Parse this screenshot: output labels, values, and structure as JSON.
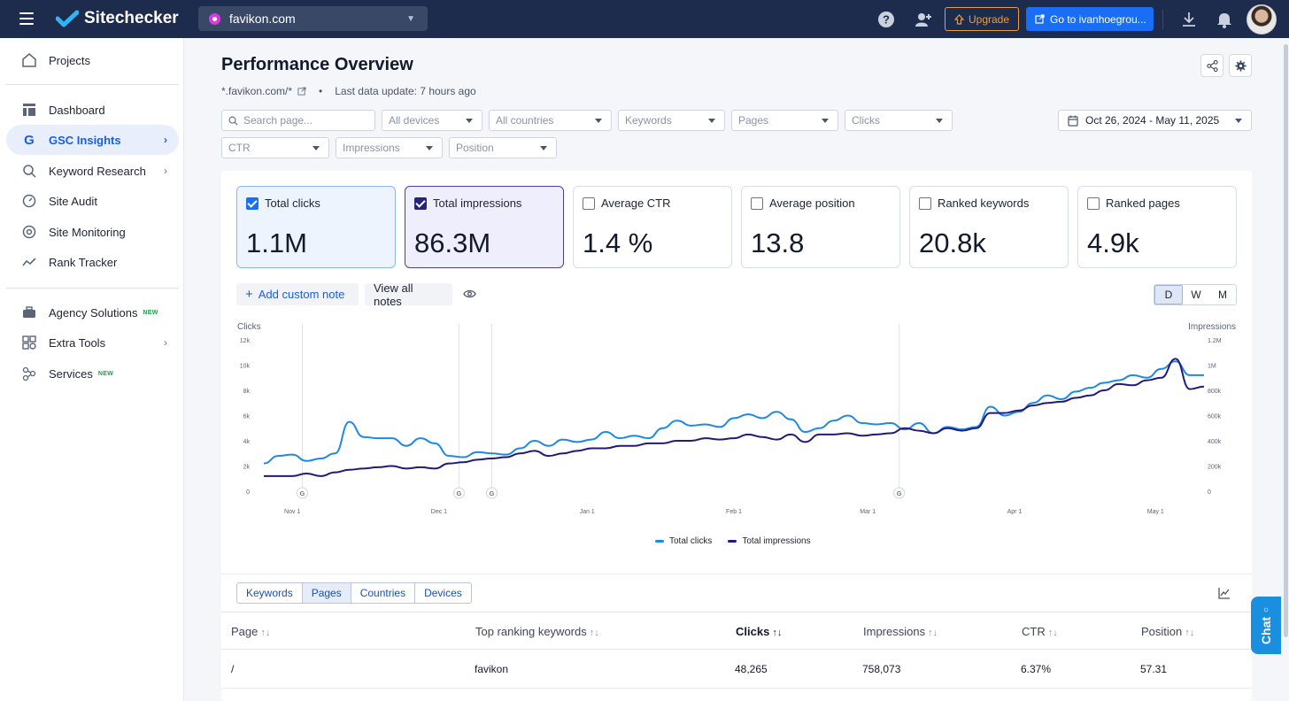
{
  "app": {
    "brand": "Sitechecker",
    "site": "favikon.com",
    "upgrade_label": "Upgrade",
    "goto_label": "Go to ivanhoegrou..."
  },
  "sidebar": {
    "items": [
      {
        "label": "Projects",
        "icon": "home-icon"
      },
      {
        "label": "Dashboard",
        "icon": "dashboard-icon"
      },
      {
        "label": "GSC Insights",
        "icon": "google-icon"
      },
      {
        "label": "Keyword Research",
        "icon": "keyword-search-icon"
      },
      {
        "label": "Site Audit",
        "icon": "gauge-icon"
      },
      {
        "label": "Site Monitoring",
        "icon": "monitor-icon"
      },
      {
        "label": "Rank Tracker",
        "icon": "trend-icon"
      },
      {
        "label": "Agency Solutions",
        "icon": "briefcase-icon"
      },
      {
        "label": "Extra Tools",
        "icon": "tools-icon"
      },
      {
        "label": "Services",
        "icon": "services-icon"
      }
    ],
    "new_badge": "NEW"
  },
  "header": {
    "title": "Performance Overview",
    "url": "*.favikon.com/*",
    "last_update": "Last data update: 7 hours ago"
  },
  "filters": {
    "search_placeholder": "Search page...",
    "devices": "All devices",
    "countries": "All countries",
    "keywords": "Keywords",
    "pages": "Pages",
    "clicks": "Clicks",
    "ctr": "CTR",
    "impressions": "Impressions",
    "position": "Position",
    "date_range": "Oct 26, 2024 - May 11, 2025"
  },
  "metrics": [
    {
      "label": "Total clicks",
      "value": "1.1M",
      "checked": true
    },
    {
      "label": "Total impressions",
      "value": "86.3M",
      "checked": true
    },
    {
      "label": "Average CTR",
      "value": "1.4 %",
      "checked": false
    },
    {
      "label": "Average position",
      "value": "13.8",
      "checked": false
    },
    {
      "label": "Ranked keywords",
      "value": "20.8k",
      "checked": false
    },
    {
      "label": "Ranked pages",
      "value": "4.9k",
      "checked": false
    }
  ],
  "notes": {
    "add": "Add custom note",
    "view": "View all notes"
  },
  "granularity": [
    "D",
    "W",
    "M"
  ],
  "legend": {
    "clicks": "Total clicks",
    "impressions": "Total impressions"
  },
  "tabs": [
    "Keywords",
    "Pages",
    "Countries",
    "Devices"
  ],
  "table": {
    "headers": [
      "Page",
      "Top ranking keywords",
      "Clicks",
      "Impressions",
      "CTR",
      "Position"
    ],
    "rows": [
      [
        "/",
        "favikon",
        "48,265",
        "758,073",
        "6.37%",
        "57.31"
      ]
    ]
  },
  "chat_label": "Chat",
  "colors": {
    "clicks": "#1e88e5",
    "impressions": "#221a7a",
    "accent": "#1a6ef5"
  },
  "chart_data": {
    "type": "line",
    "ylabel": "Clicks",
    "y2label": "Impressions",
    "ylim": [
      0,
      12000
    ],
    "y2lim": [
      0,
      1200000
    ],
    "yticks": [
      "0",
      "2k",
      "4k",
      "6k",
      "8k",
      "10k",
      "12k"
    ],
    "y2ticks": [
      "0",
      "200k",
      "400k",
      "600k",
      "800k",
      "1M",
      "1.2M"
    ],
    "xticks": [
      "Nov 1",
      "Dec 1",
      "Jan 1",
      "Feb 1",
      "Mar 1",
      "Apr 1",
      "May 1"
    ],
    "x": [
      "Oct 26",
      "Oct 28",
      "Oct 31",
      "Nov 3",
      "Nov 6",
      "Nov 9",
      "Nov 12",
      "Nov 15",
      "Nov 18",
      "Nov 21",
      "Nov 24",
      "Nov 27",
      "Nov 30",
      "Dec 3",
      "Dec 6",
      "Dec 9",
      "Dec 12",
      "Dec 15",
      "Dec 18",
      "Dec 21",
      "Dec 24",
      "Dec 27",
      "Dec 30",
      "Jan 2",
      "Jan 5",
      "Jan 8",
      "Jan 11",
      "Jan 14",
      "Jan 17",
      "Jan 20",
      "Jan 23",
      "Jan 26",
      "Jan 29",
      "Feb 1",
      "Feb 4",
      "Feb 7",
      "Feb 10",
      "Feb 13",
      "Feb 16",
      "Feb 19",
      "Feb 22",
      "Feb 25",
      "Feb 28",
      "Mar 3",
      "Mar 6",
      "Mar 9",
      "Mar 12",
      "Mar 15",
      "Mar 18",
      "Mar 21",
      "Mar 24",
      "Mar 27",
      "Mar 30",
      "Apr 2",
      "Apr 5",
      "Apr 8",
      "Apr 11",
      "Apr 14",
      "Apr 17",
      "Apr 20",
      "Apr 23",
      "Apr 26",
      "Apr 29",
      "May 2",
      "May 5",
      "May 8",
      "May 11"
    ],
    "series": [
      {
        "name": "Total clicks",
        "axis": "left",
        "values": [
          2200,
          2800,
          2900,
          2400,
          2600,
          3000,
          5500,
          4300,
          4200,
          4200,
          3600,
          4200,
          3800,
          2800,
          2700,
          3100,
          3000,
          2900,
          3400,
          4000,
          3600,
          4100,
          3900,
          4100,
          4700,
          4200,
          4400,
          4200,
          5000,
          5600,
          5200,
          5300,
          5100,
          5800,
          6100,
          5800,
          6300,
          5700,
          4700,
          5000,
          5600,
          6000,
          5400,
          5300,
          5400,
          4900,
          5400,
          4600,
          5100,
          4900,
          5100,
          6700,
          6000,
          6300,
          7000,
          7600,
          7300,
          7900,
          8200,
          8600,
          8800,
          9200,
          9000,
          9700,
          10300,
          9200,
          9200
        ]
      },
      {
        "name": "Total impressions",
        "axis": "right",
        "values": [
          120000,
          120000,
          120000,
          140000,
          120000,
          150000,
          170000,
          180000,
          190000,
          200000,
          180000,
          190000,
          180000,
          220000,
          230000,
          250000,
          260000,
          270000,
          300000,
          320000,
          280000,
          300000,
          320000,
          340000,
          340000,
          360000,
          360000,
          380000,
          380000,
          400000,
          400000,
          420000,
          410000,
          420000,
          450000,
          430000,
          410000,
          450000,
          390000,
          450000,
          450000,
          460000,
          440000,
          450000,
          460000,
          500000,
          480000,
          460000,
          500000,
          480000,
          500000,
          620000,
          620000,
          640000,
          680000,
          700000,
          710000,
          740000,
          760000,
          800000,
          850000,
          840000,
          880000,
          900000,
          1050000,
          810000,
          830000
        ]
      }
    ],
    "annotation_dates": [
      "Nov 2",
      "Dec 5",
      "Dec 12",
      "Mar 8"
    ],
    "legend_position": "bottom"
  }
}
